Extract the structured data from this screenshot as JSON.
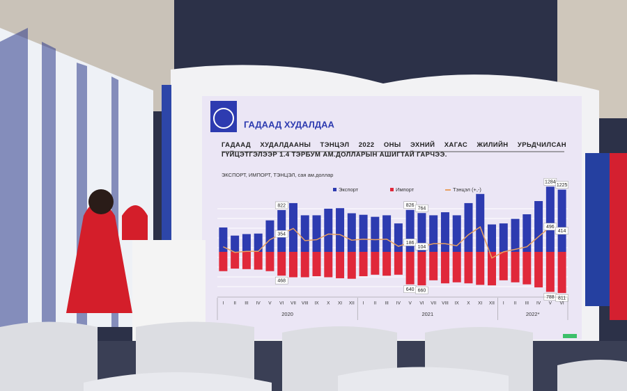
{
  "chart_data": {
    "type": "bar",
    "header": "ГАДААД ХУДАЛДАА",
    "title": "ГАДААД ХУДАЛДААНЫ ТЭНЦЭЛ 2022 ОНЫ ЭХНИЙ ХАГАС ЖИЛИЙН УРЬДЧИЛСАН ГҮЙЦЭТГЭЛЭЭР 1.4 ТЭРБУМ АМ.ДОЛЛАРЫН АШИГТАЙ ГАРЧЭЭ.",
    "subtitle": "ЭКСПОРТ, ИМПОРТ, ТЭНЦЭЛ, сая ам.доллар",
    "categories": [
      "I",
      "II",
      "III",
      "IV",
      "V",
      "VI",
      "VII",
      "VIII",
      "IX",
      "X",
      "XI",
      "XII",
      "I",
      "II",
      "III",
      "IV",
      "V",
      "VI",
      "VII",
      "VIII",
      "IX",
      "X",
      "XI",
      "XII",
      "I",
      "II",
      "III",
      "IV",
      "V",
      "VI"
    ],
    "years": [
      {
        "label": "2020",
        "months": 12
      },
      {
        "label": "2021",
        "months": 12
      },
      {
        "label": "2022*",
        "months": 6
      }
    ],
    "labeled": [
      5,
      16,
      17,
      28,
      29
    ],
    "series": [
      {
        "name": "Экспорт",
        "color": "#2d3bb0",
        "direction": "up",
        "values": [
          480,
          320,
          350,
          360,
          620,
          822,
          960,
          720,
          720,
          850,
          860,
          760,
          730,
          690,
          720,
          560,
          826,
          764,
          720,
          780,
          720,
          960,
          1140,
          540,
          560,
          650,
          740,
          1000,
          1284,
          1225
        ]
      },
      {
        "name": "Импорт",
        "color": "#e0283a",
        "direction": "down",
        "values": [
          380,
          330,
          340,
          350,
          380,
          468,
          500,
          500,
          480,
          500,
          520,
          530,
          480,
          450,
          470,
          450,
          640,
          660,
          560,
          620,
          600,
          620,
          650,
          660,
          560,
          600,
          640,
          700,
          788,
          811
        ]
      },
      {
        "name": "Тэнцэл (+,-)",
        "color": "#e8a060",
        "kind": "line",
        "values": [
          100,
          -10,
          10,
          10,
          240,
          354,
          460,
          220,
          240,
          350,
          340,
          230,
          250,
          240,
          250,
          110,
          186,
          104,
          160,
          160,
          120,
          340,
          490,
          -120,
          0,
          50,
          100,
          300,
          496,
          414
        ]
      }
    ]
  }
}
